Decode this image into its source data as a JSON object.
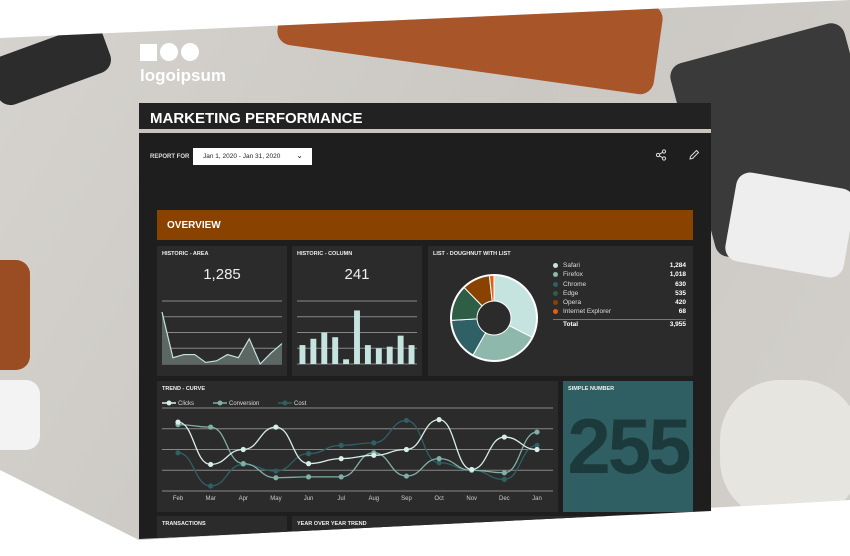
{
  "logo": {
    "text": "logoipsum"
  },
  "header": {
    "title": "MARKETING PERFORMANCE"
  },
  "report": {
    "label": "REPORT FOR",
    "date_range": "Jan 1, 2020 - Jan 31, 2020",
    "share_icon": "share-icon",
    "edit_icon": "pencil-icon"
  },
  "overview": {
    "title": "OVERVIEW"
  },
  "cards": {
    "area": {
      "title": "HISTORIC - AREA",
      "value": "1,285"
    },
    "column": {
      "title": "HISTORIC - COLUMN",
      "value": "241"
    },
    "doughnut": {
      "title": "LIST - DOUGHNUT WITH LIST",
      "total_label": "Total",
      "total": "3,955"
    },
    "trend": {
      "title": "TREND - CURVE"
    },
    "simple": {
      "title": "SIMPLE NUMBER",
      "value": "255"
    },
    "transactions": {
      "title": "TRANSACTIONS"
    },
    "yoy": {
      "title": "YEAR OVER YEAR TREND"
    }
  },
  "chart_data": [
    {
      "type": "area",
      "values": [
        3.3,
        0.4,
        0.6,
        0.6,
        0.1,
        0.2,
        0.6,
        0.4,
        1.6,
        0,
        0.7,
        1.3
      ],
      "ylim": [
        0,
        4
      ],
      "grid": true,
      "color": "#c5e3df"
    },
    {
      "type": "bar",
      "values": [
        1.2,
        1.6,
        2.0,
        1.7,
        0.3,
        3.4,
        1.2,
        1.0,
        1.1,
        1.8,
        1.2
      ],
      "ylim": [
        0,
        4
      ],
      "grid": true,
      "color": "#c5e3df"
    },
    {
      "type": "pie",
      "donut": true,
      "items": [
        {
          "name": "Safari",
          "value": 1284,
          "label": "1,284",
          "color": "#c5e3df"
        },
        {
          "name": "Firefox",
          "value": 1018,
          "label": "1,018",
          "color": "#8fb8ad"
        },
        {
          "name": "Chrome",
          "value": 630,
          "label": "630",
          "color": "#2f6065"
        },
        {
          "name": "Edge",
          "value": 535,
          "label": "535",
          "color": "#2e5e45"
        },
        {
          "name": "Opera",
          "value": 420,
          "label": "420",
          "color": "#8a4200"
        },
        {
          "name": "Internet Explorer",
          "value": 68,
          "label": "68",
          "color": "#e0601a"
        }
      ]
    },
    {
      "type": "line",
      "curve": true,
      "categories": [
        "Feb",
        "Mar",
        "Apr",
        "May",
        "Jun",
        "Jul",
        "Aug",
        "Sep",
        "Oct",
        "Nov",
        "Dec",
        "Jan"
      ],
      "ylim": [
        0,
        100
      ],
      "grid": true,
      "legend": "top-left",
      "series": [
        {
          "name": "Clicks",
          "color": "#d8eeea",
          "values": [
            83,
            32,
            50,
            77,
            33,
            39,
            43,
            50,
            86,
            26,
            65,
            50
          ]
        },
        {
          "name": "Conversion",
          "color": "#7fb0a6",
          "values": [
            80,
            77,
            33,
            16,
            17,
            17,
            46,
            18,
            39,
            25,
            22,
            71
          ]
        },
        {
          "name": "Cost",
          "color": "#2f6065",
          "values": [
            46,
            6,
            32,
            24,
            45,
            55,
            58,
            85,
            34,
            25,
            14,
            55
          ]
        }
      ]
    }
  ]
}
